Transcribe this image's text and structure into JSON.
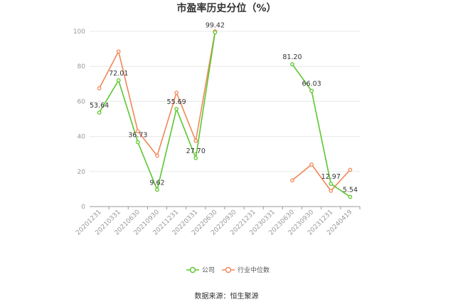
{
  "chart_data": {
    "type": "line",
    "title": "市盈率历史分位（%）",
    "categories": [
      "20201231",
      "20210331",
      "20210630",
      "20210930",
      "20211231",
      "20220331",
      "20220630",
      "20220930",
      "20221231",
      "20230331",
      "20230630",
      "20230930",
      "20231231",
      "20240419"
    ],
    "ylim": [
      0,
      100
    ],
    "yticks": [
      0,
      20,
      40,
      60,
      80,
      100
    ],
    "grid": true,
    "legend_position": "bottom",
    "series": [
      {
        "name": "公司",
        "color": "#5cc72e",
        "values": [
          53.64,
          72.01,
          36.73,
          9.62,
          55.69,
          27.7,
          99.42,
          null,
          null,
          null,
          81.2,
          66.03,
          12.97,
          5.54
        ],
        "labels": [
          "53.64",
          "72.01",
          "36.73",
          "9.62",
          "55.69",
          "27.70",
          "99.42",
          "",
          "",
          "",
          "81.20",
          "66.03",
          "12.97",
          "5.54"
        ]
      },
      {
        "name": "行业中位数",
        "color": "#f2875a",
        "values": [
          67.5,
          88.5,
          43.0,
          29.0,
          65.0,
          37.5,
          100.0,
          null,
          null,
          null,
          15.0,
          24.0,
          9.0,
          21.0
        ]
      }
    ],
    "source": "数据来源：恒生聚源"
  }
}
